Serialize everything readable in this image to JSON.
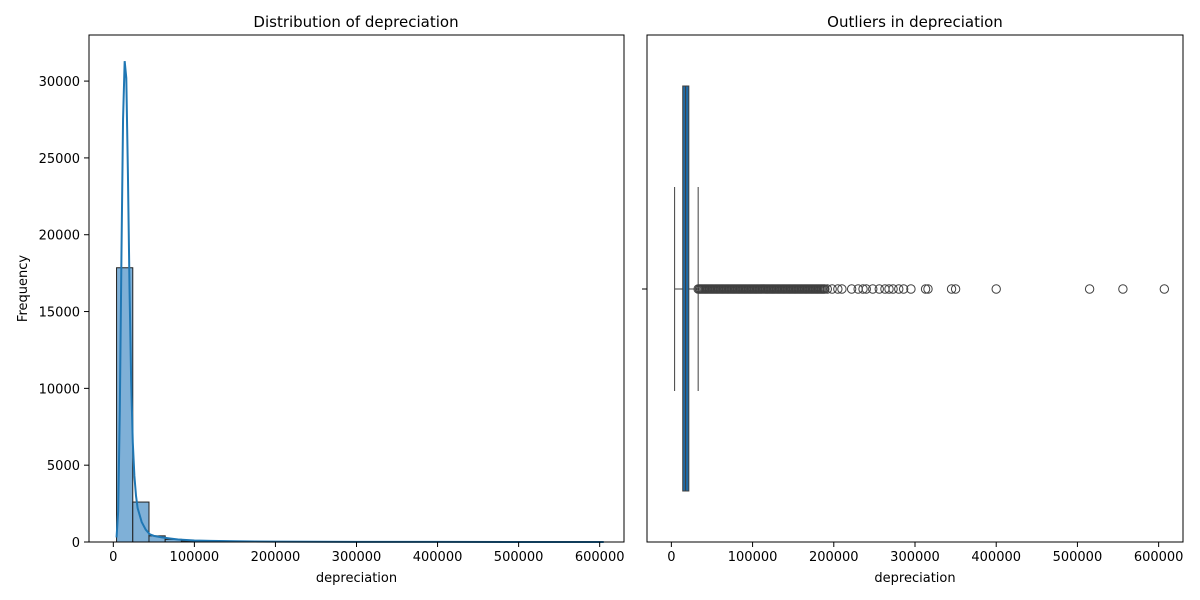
{
  "chart_data": [
    {
      "type": "bar",
      "title": "Distribution of depreciation",
      "xlabel": "depreciation",
      "ylabel": "Frequency",
      "xlim": [
        -30000,
        630000
      ],
      "ylim": [
        0,
        33000
      ],
      "xticks": [
        0,
        100000,
        200000,
        300000,
        400000,
        500000,
        600000
      ],
      "yticks": [
        0,
        5000,
        10000,
        15000,
        20000,
        25000,
        30000
      ],
      "bins": [
        {
          "start": 4000,
          "end": 24000,
          "count": 17850
        },
        {
          "start": 24000,
          "end": 44000,
          "count": 2600
        },
        {
          "start": 44000,
          "end": 64000,
          "count": 400
        },
        {
          "start": 64000,
          "end": 84000,
          "count": 170
        },
        {
          "start": 84000,
          "end": 104000,
          "count": 70
        },
        {
          "start": 104000,
          "end": 124000,
          "count": 35
        },
        {
          "start": 124000,
          "end": 144000,
          "count": 20
        },
        {
          "start": 144000,
          "end": 164000,
          "count": 12
        },
        {
          "start": 164000,
          "end": 184000,
          "count": 8
        },
        {
          "start": 184000,
          "end": 204000,
          "count": 6
        },
        {
          "start": 204000,
          "end": 224000,
          "count": 5
        },
        {
          "start": 224000,
          "end": 244000,
          "count": 4
        },
        {
          "start": 244000,
          "end": 264000,
          "count": 3
        },
        {
          "start": 264000,
          "end": 284000,
          "count": 3
        },
        {
          "start": 284000,
          "end": 304000,
          "count": 2
        },
        {
          "start": 304000,
          "end": 324000,
          "count": 2
        },
        {
          "start": 324000,
          "end": 344000,
          "count": 1
        },
        {
          "start": 344000,
          "end": 364000,
          "count": 2
        },
        {
          "start": 364000,
          "end": 384000,
          "count": 0
        },
        {
          "start": 384000,
          "end": 404000,
          "count": 1
        },
        {
          "start": 404000,
          "end": 424000,
          "count": 0
        },
        {
          "start": 424000,
          "end": 444000,
          "count": 0
        },
        {
          "start": 444000,
          "end": 464000,
          "count": 0
        },
        {
          "start": 464000,
          "end": 484000,
          "count": 0
        },
        {
          "start": 484000,
          "end": 504000,
          "count": 0
        },
        {
          "start": 504000,
          "end": 524000,
          "count": 1
        },
        {
          "start": 524000,
          "end": 544000,
          "count": 0
        },
        {
          "start": 544000,
          "end": 564000,
          "count": 1
        },
        {
          "start": 564000,
          "end": 584000,
          "count": 0
        },
        {
          "start": 584000,
          "end": 604000,
          "count": 1
        }
      ],
      "kde": {
        "x": [
          4000,
          6000,
          8000,
          10000,
          12000,
          14000,
          16000,
          18000,
          20000,
          22000,
          24000,
          26000,
          28000,
          30000,
          35000,
          40000,
          45000,
          50000,
          60000,
          70000,
          80000,
          100000,
          120000,
          150000,
          200000,
          250000,
          300000,
          400000,
          500000,
          605000
        ],
        "y": [
          300,
          2000,
          8500,
          18500,
          27500,
          31300,
          30200,
          24000,
          16500,
          10500,
          6500,
          4300,
          3000,
          2200,
          1300,
          800,
          500,
          400,
          300,
          230,
          160,
          100,
          70,
          45,
          25,
          15,
          10,
          5,
          3,
          2
        ]
      },
      "colors": {
        "bar_fill": "#7fb0d7",
        "bar_edge": "#1f1f1f",
        "kde_line": "#1f77b4"
      }
    },
    {
      "type": "boxplot",
      "title": "Outliers in depreciation",
      "xlabel": "depreciation",
      "xlim": [
        -30000,
        630000
      ],
      "xticks": [
        0,
        100000,
        200000,
        300000,
        400000,
        500000,
        600000
      ],
      "box": {
        "whislo": 4000,
        "q1": 14000,
        "median": 17500,
        "q3": 21500,
        "whishi": 33000
      },
      "outlier_range_dense": [
        33000,
        190000
      ],
      "outliers": [
        192000,
        198000,
        205000,
        210000,
        222000,
        230000,
        236000,
        240000,
        248000,
        256000,
        263000,
        268000,
        273000,
        280000,
        286000,
        295000,
        313000,
        316000,
        345000,
        350000,
        400000,
        515000,
        556000,
        607000
      ],
      "colors": {
        "box_fill": "#1f6aa5",
        "line": "#3f3f3f"
      }
    }
  ]
}
